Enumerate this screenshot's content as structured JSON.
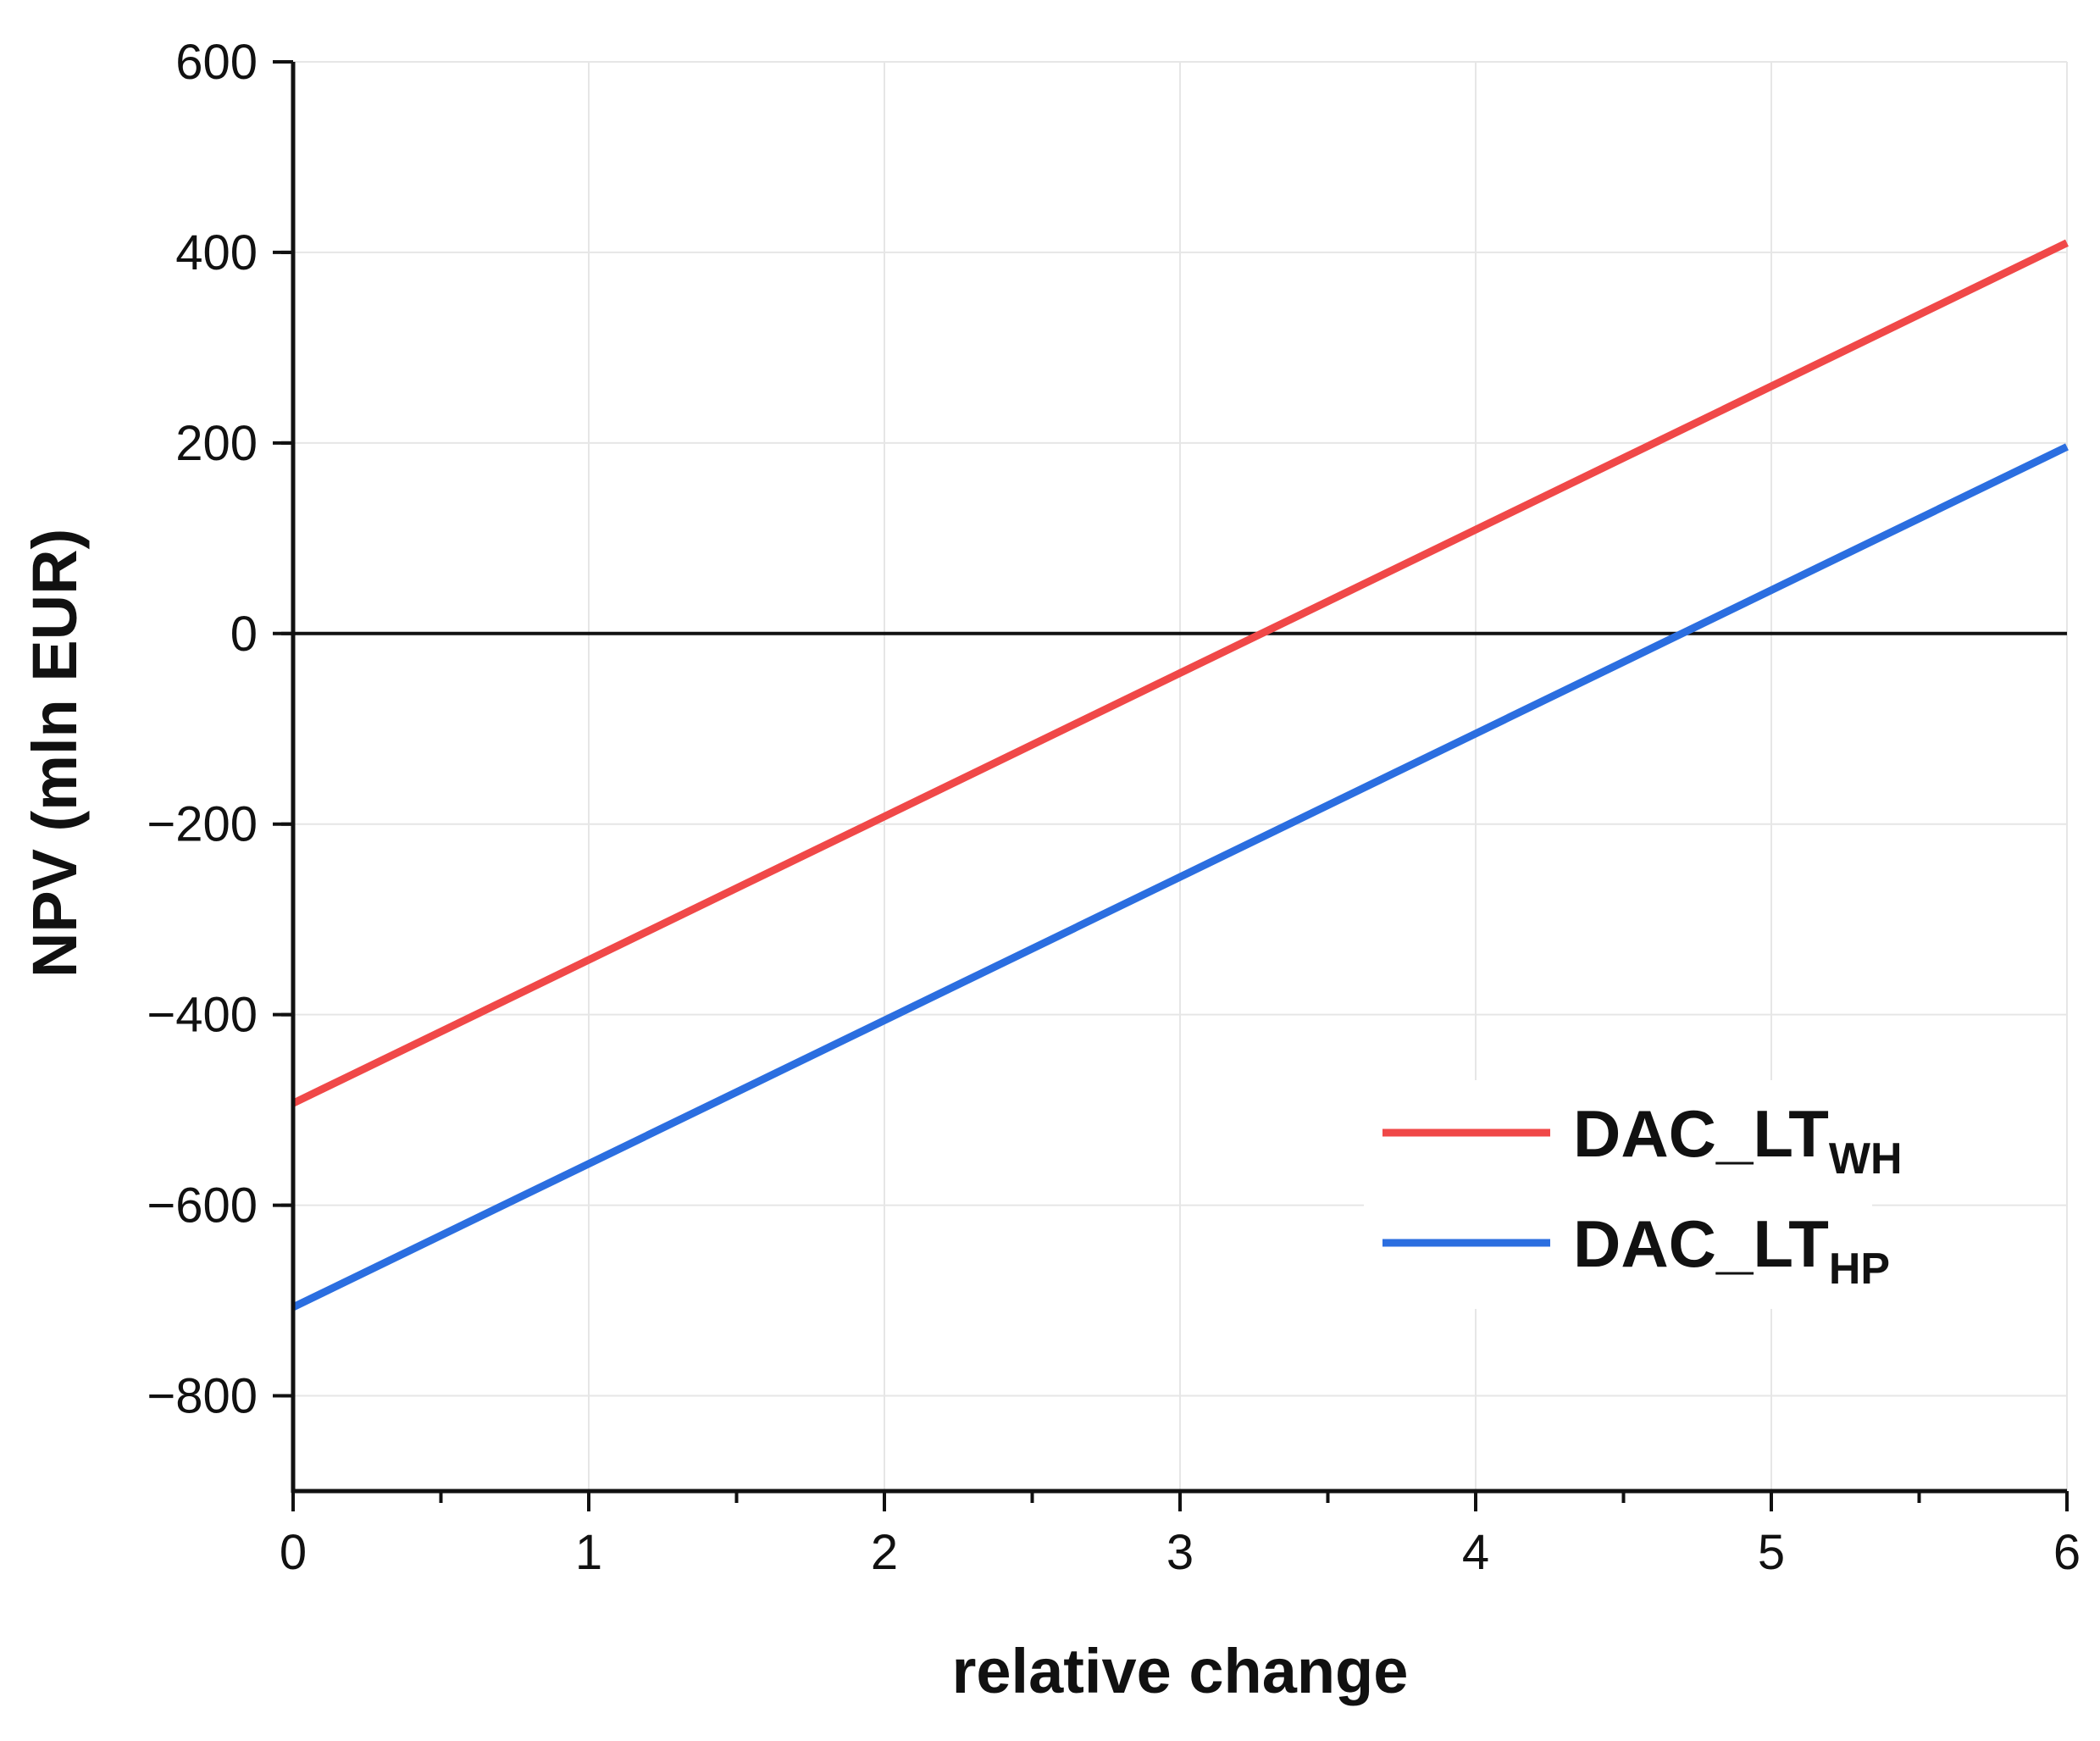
{
  "chart_data": {
    "type": "line",
    "title": "",
    "xlabel": "relative change",
    "ylabel": "NPV (mln EUR)",
    "xlim": [
      0,
      6
    ],
    "ylim": [
      -900,
      600
    ],
    "xticks": [
      0,
      1,
      2,
      3,
      4,
      5,
      6
    ],
    "yticks": [
      -800,
      -600,
      -400,
      -200,
      0,
      200,
      400,
      600
    ],
    "xtick_labels": [
      "0",
      "1",
      "2",
      "3",
      "4",
      "5",
      "6"
    ],
    "ytick_labels": [
      "−800",
      "−600",
      "−400",
      "−200",
      "0",
      "200",
      "400",
      "600"
    ],
    "grid": true,
    "zero_line": true,
    "legend_position": "bottom-right",
    "series": [
      {
        "name": "DAC_LT",
        "subscript": "WH",
        "color": "#f04848",
        "x": [
          0,
          6
        ],
        "y": [
          -493,
          410
        ]
      },
      {
        "name": "DAC_LT",
        "subscript": "HP",
        "color": "#2b6ee0",
        "x": [
          0,
          6
        ],
        "y": [
          -707,
          196
        ]
      }
    ]
  }
}
